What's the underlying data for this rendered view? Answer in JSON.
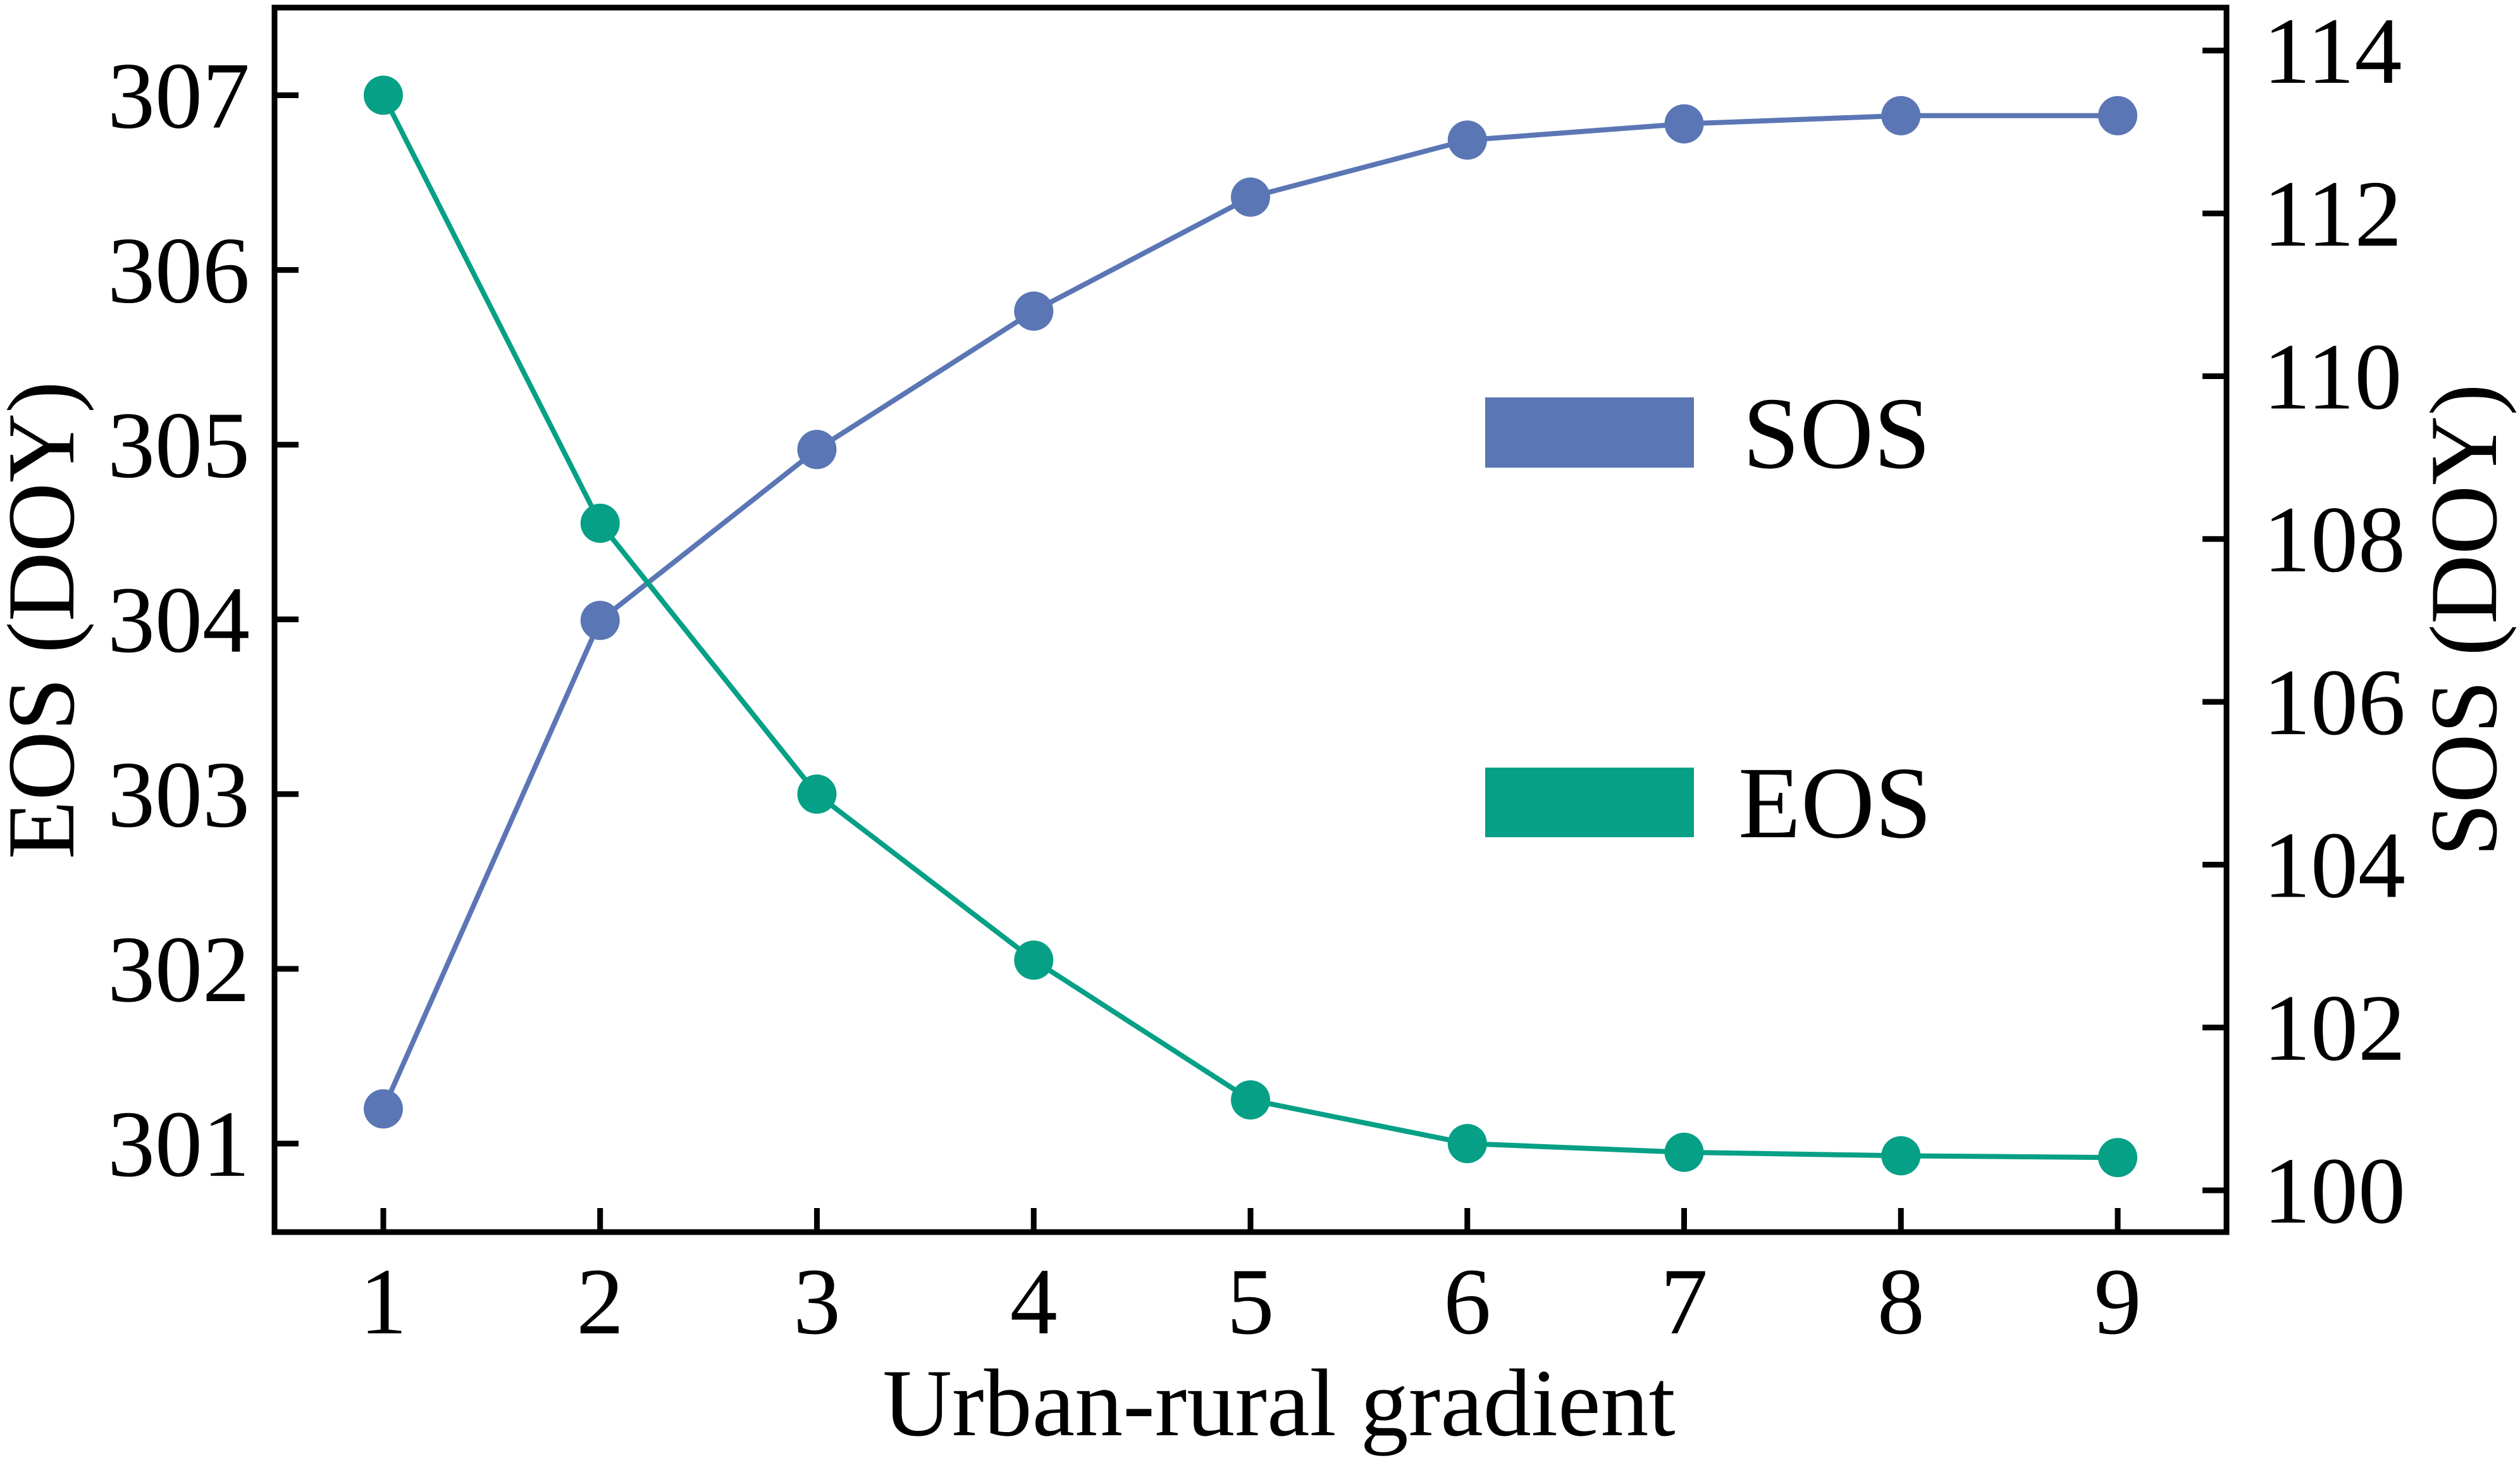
{
  "chart_data": {
    "type": "line",
    "title": "",
    "x": [
      1,
      2,
      3,
      4,
      5,
      6,
      7,
      8,
      9
    ],
    "categories": [
      "1",
      "2",
      "3",
      "4",
      "5",
      "6",
      "7",
      "8",
      "9"
    ],
    "xlabel": "Urban-rural gradient",
    "ylabel_left": "EOS (DOY)",
    "ylabel_right": "SOS (DOY)",
    "ylim_left": [
      300.5,
      307.5
    ],
    "ylim_right": [
      99,
      114.5
    ],
    "yticks_left": [
      301,
      302,
      303,
      304,
      305,
      306,
      307
    ],
    "yticks_right": [
      100,
      102,
      104,
      106,
      108,
      110,
      112,
      114
    ],
    "grid": false,
    "legend_position": "inside-right-center",
    "series": [
      {
        "name": "SOS",
        "axis": "right",
        "color": "#5B76B4",
        "marker": "circle",
        "values": [
          101.0,
          107.0,
          109.1,
          110.8,
          112.2,
          112.9,
          113.1,
          113.2,
          113.2
        ]
      },
      {
        "name": "EOS",
        "axis": "left",
        "color": "#06A086",
        "marker": "circle",
        "values": [
          307.0,
          304.55,
          303.0,
          302.05,
          301.25,
          301.0,
          300.95,
          300.93,
          300.92
        ]
      }
    ]
  },
  "axes": {
    "x_title": "Urban-rural gradient",
    "left_title": "EOS (DOY)",
    "right_title": "SOS (DOY)"
  },
  "legend": {
    "items": [
      {
        "label": "SOS",
        "color": "#5B76B4"
      },
      {
        "label": "EOS",
        "color": "#06A086"
      }
    ]
  }
}
